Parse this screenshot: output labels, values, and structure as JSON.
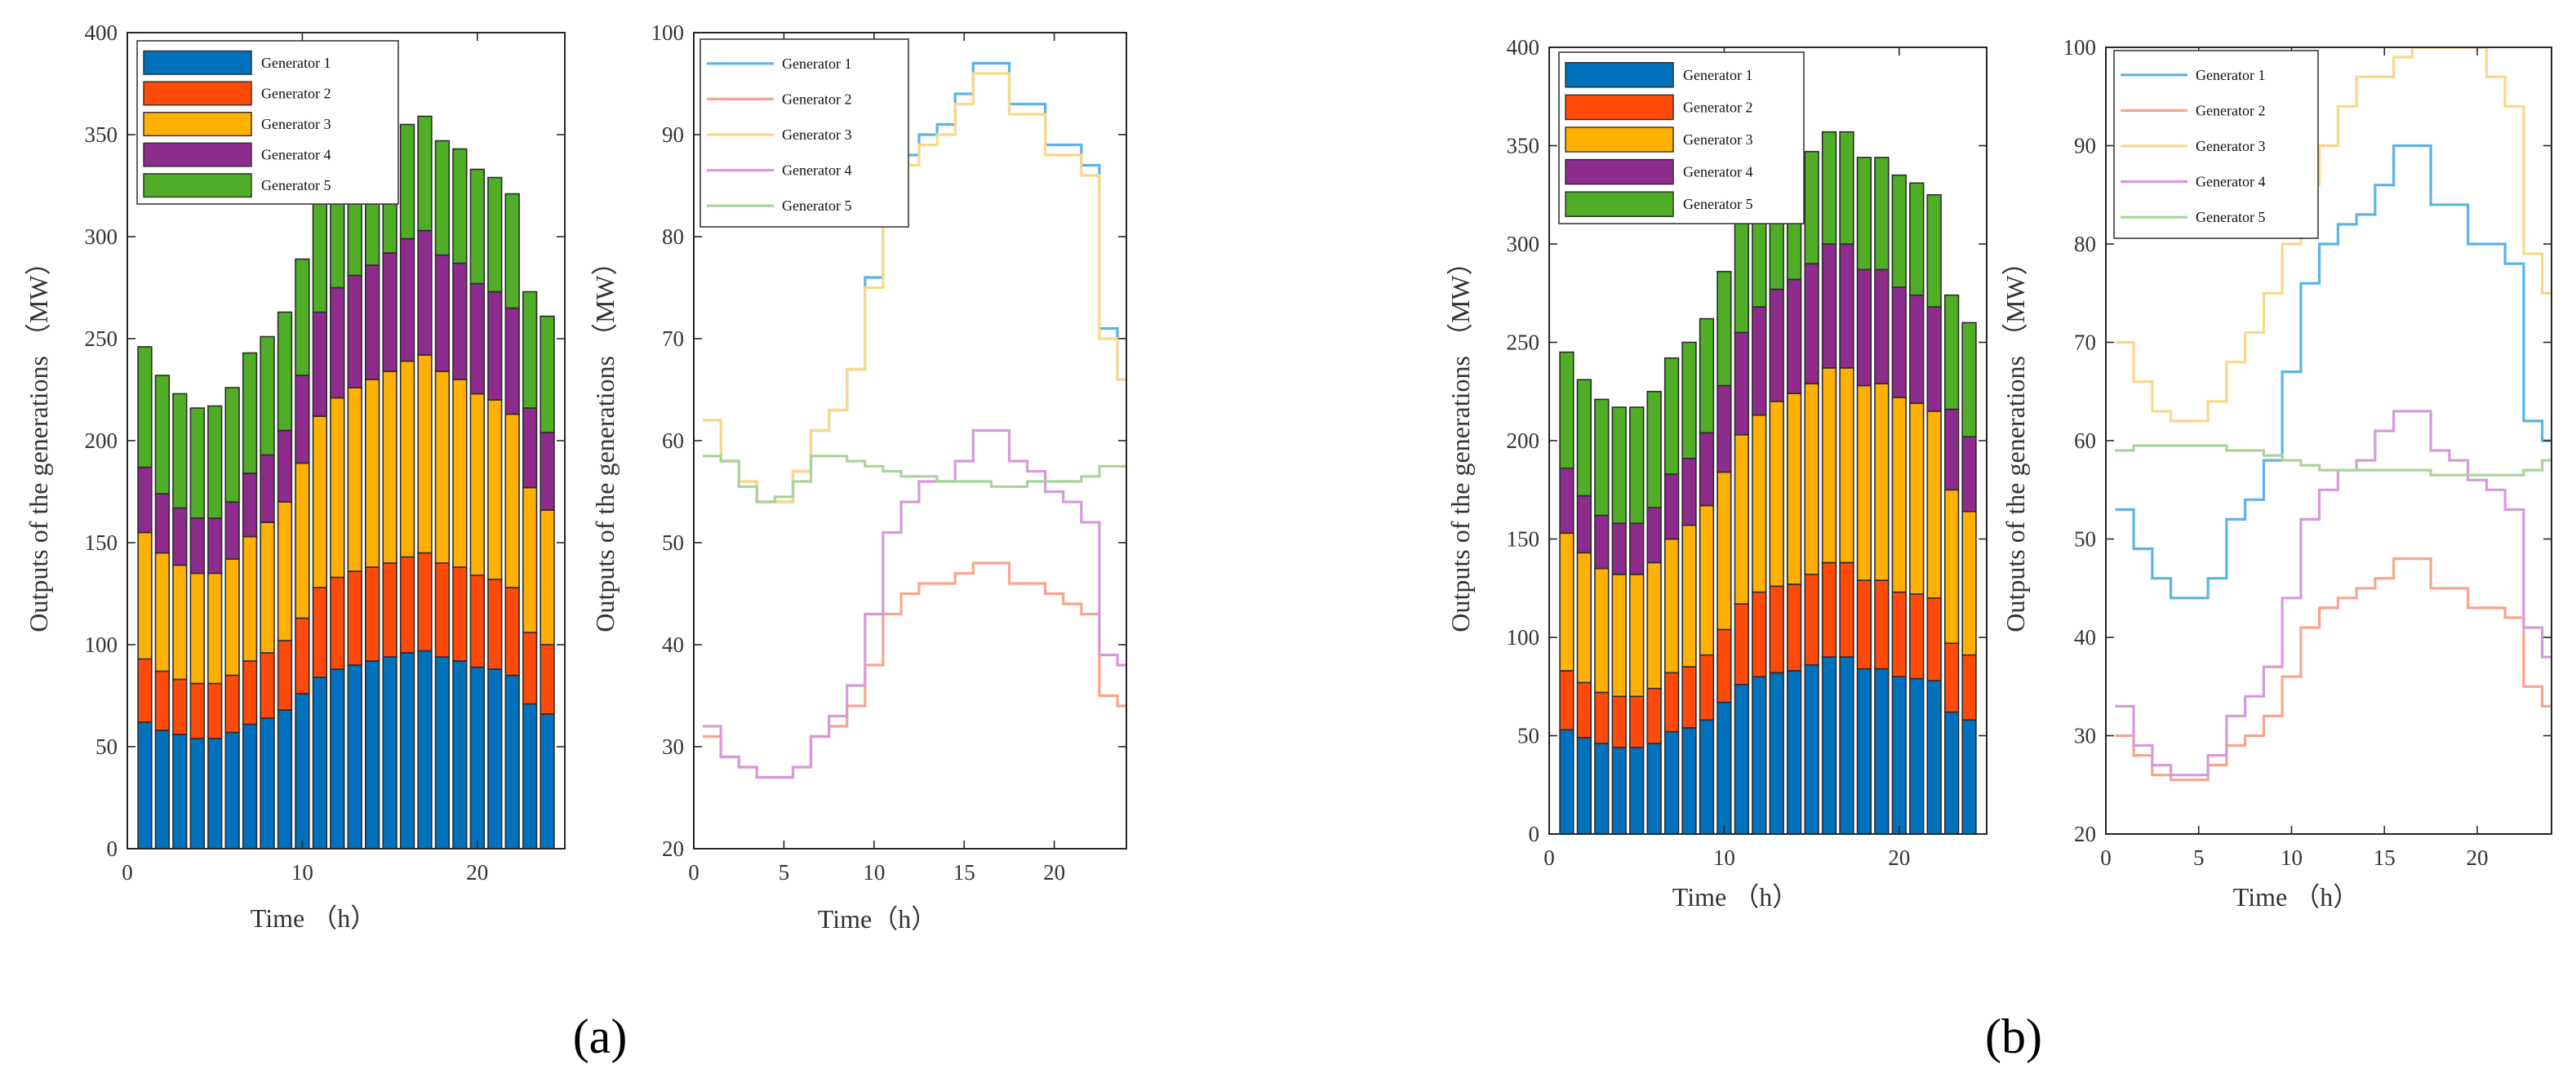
{
  "panel_labels": [
    "(a)",
    "(b)"
  ],
  "chart_data": [
    {
      "id": "a-stacked",
      "type": "bar",
      "stacked": true,
      "xlabel": "Time （h）",
      "ylabel": "Outputs of the generations （MW）",
      "xlim": [
        0,
        25
      ],
      "ylim": [
        0,
        400
      ],
      "xticks": [
        0,
        10,
        20
      ],
      "yticks": [
        0,
        50,
        100,
        150,
        200,
        250,
        300,
        350,
        400
      ],
      "legend_position": "top-left",
      "x": [
        1,
        2,
        3,
        4,
        5,
        6,
        7,
        8,
        9,
        10,
        11,
        12,
        13,
        14,
        15,
        16,
        17,
        18,
        19,
        20,
        21,
        22,
        23,
        24
      ],
      "series": [
        {
          "name": "Generator 1",
          "color": "#0072BD",
          "values": [
            62,
            58,
            56,
            54,
            54,
            57,
            61,
            64,
            68,
            76,
            84,
            88,
            90,
            92,
            94,
            96,
            97,
            94,
            92,
            89,
            88,
            85,
            71,
            66
          ]
        },
        {
          "name": "Generator 2",
          "color": "#FF4A0A",
          "values": [
            31,
            29,
            27,
            27,
            27,
            28,
            31,
            32,
            34,
            37,
            44,
            45,
            46,
            46,
            46,
            47,
            48,
            46,
            46,
            45,
            44,
            43,
            35,
            34
          ]
        },
        {
          "name": "Generator 3",
          "color": "#FFB000",
          "values": [
            62,
            58,
            56,
            54,
            54,
            57,
            61,
            64,
            68,
            76,
            84,
            88,
            90,
            92,
            94,
            96,
            97,
            94,
            92,
            89,
            88,
            85,
            71,
            66
          ]
        },
        {
          "name": "Generator 4",
          "color": "#8E2C8E",
          "values": [
            32,
            29,
            28,
            27,
            27,
            28,
            31,
            33,
            35,
            43,
            51,
            54,
            55,
            56,
            58,
            60,
            61,
            57,
            57,
            54,
            53,
            52,
            39,
            38
          ]
        },
        {
          "name": "Generator 5",
          "color": "#4FAE26",
          "values": [
            59,
            58,
            56,
            54,
            55,
            56,
            59,
            58,
            58,
            57,
            57,
            56,
            56,
            56,
            56,
            56,
            56,
            56,
            56,
            56,
            56,
            56,
            57,
            57
          ]
        }
      ]
    },
    {
      "id": "a-lines",
      "type": "line",
      "step": true,
      "xlabel": "Time（h）",
      "ylabel": "Outputs of the generations （MW）",
      "xlim": [
        0,
        24
      ],
      "ylim": [
        20,
        100
      ],
      "xticks": [
        0,
        5,
        10,
        15,
        20
      ],
      "yticks": [
        20,
        30,
        40,
        50,
        60,
        70,
        80,
        90,
        100
      ],
      "legend_position": "top-left",
      "x": [
        1,
        2,
        3,
        4,
        5,
        6,
        7,
        8,
        9,
        10,
        11,
        12,
        13,
        14,
        15,
        16,
        17,
        18,
        19,
        20,
        21,
        22,
        23,
        24
      ],
      "series": [
        {
          "name": "Generator 1",
          "color": "#5AB4E5",
          "values": [
            62,
            58,
            56,
            54,
            54,
            57,
            61,
            63,
            67,
            76,
            84,
            88,
            90,
            91,
            94,
            97,
            97,
            93,
            93,
            89,
            89,
            87,
            71,
            66
          ]
        },
        {
          "name": "Generator 2",
          "color": "#F7A58C",
          "values": [
            31,
            29,
            28,
            27,
            27,
            28,
            31,
            32,
            34,
            38,
            43,
            45,
            46,
            46,
            47,
            48,
            48,
            46,
            46,
            45,
            44,
            43,
            35,
            34
          ]
        },
        {
          "name": "Generator 3",
          "color": "#F9D88A",
          "values": [
            62,
            58,
            56,
            54,
            54,
            57,
            61,
            63,
            67,
            75,
            83,
            87,
            89,
            90,
            93,
            96,
            96,
            92,
            92,
            88,
            88,
            86,
            70,
            66
          ]
        },
        {
          "name": "Generator 4",
          "color": "#D69ADB",
          "values": [
            32,
            29,
            28,
            27,
            27,
            28,
            31,
            33,
            36,
            43,
            51,
            54,
            56,
            56,
            58,
            61,
            61,
            58,
            57,
            55,
            54,
            52,
            39,
            38
          ]
        },
        {
          "name": "Generator 5",
          "color": "#A9D49A",
          "values": [
            58.5,
            58,
            55.5,
            54,
            54.5,
            56,
            58.5,
            58.5,
            58,
            57.5,
            57,
            56.5,
            56.5,
            56,
            56,
            56,
            55.5,
            55.5,
            56,
            56,
            56,
            56.5,
            57.5,
            57.5
          ]
        }
      ]
    },
    {
      "id": "b-stacked",
      "type": "bar",
      "stacked": true,
      "xlabel": "Time （h）",
      "ylabel": "Outputs of the generations （MW）",
      "xlim": [
        0,
        25
      ],
      "ylim": [
        0,
        400
      ],
      "xticks": [
        0,
        10,
        20
      ],
      "yticks": [
        0,
        50,
        100,
        150,
        200,
        250,
        300,
        350,
        400
      ],
      "legend_position": "top-left",
      "x": [
        1,
        2,
        3,
        4,
        5,
        6,
        7,
        8,
        9,
        10,
        11,
        12,
        13,
        14,
        15,
        16,
        17,
        18,
        19,
        20,
        21,
        22,
        23,
        24
      ],
      "series": [
        {
          "name": "Generator 1",
          "color": "#0072BD",
          "values": [
            53,
            49,
            46,
            44,
            44,
            46,
            52,
            54,
            58,
            67,
            76,
            80,
            82,
            83,
            86,
            90,
            90,
            84,
            84,
            80,
            79,
            78,
            62,
            58
          ]
        },
        {
          "name": "Generator 2",
          "color": "#FF4A0A",
          "values": [
            30,
            28,
            26,
            26,
            26,
            28,
            30,
            31,
            33,
            37,
            41,
            43,
            44,
            44,
            46,
            48,
            48,
            45,
            45,
            43,
            43,
            42,
            35,
            33
          ]
        },
        {
          "name": "Generator 3",
          "color": "#FFB000",
          "values": [
            70,
            66,
            63,
            62,
            62,
            64,
            68,
            72,
            76,
            80,
            86,
            90,
            94,
            97,
            97,
            99,
            99,
            99,
            100,
            99,
            97,
            95,
            78,
            73
          ]
        },
        {
          "name": "Generator 4",
          "color": "#8E2C8E",
          "values": [
            33,
            29,
            27,
            26,
            26,
            28,
            33,
            34,
            37,
            44,
            52,
            55,
            57,
            58,
            61,
            63,
            63,
            59,
            58,
            56,
            55,
            53,
            41,
            38
          ]
        },
        {
          "name": "Generator 5",
          "color": "#4FAE26",
          "values": [
            59,
            59,
            59,
            59,
            59,
            59,
            59,
            59,
            58,
            58,
            57,
            57,
            57,
            57,
            57,
            57,
            57,
            57,
            57,
            57,
            57,
            57,
            58,
            58
          ]
        }
      ]
    },
    {
      "id": "b-lines",
      "type": "line",
      "step": true,
      "xlabel": "Time （h）",
      "ylabel": "Outputs of the generations （MW）",
      "xlim": [
        0,
        24
      ],
      "ylim": [
        20,
        100
      ],
      "xticks": [
        0,
        5,
        10,
        15,
        20
      ],
      "yticks": [
        20,
        30,
        40,
        50,
        60,
        70,
        80,
        90,
        100
      ],
      "legend_position": "top-left",
      "x": [
        1,
        2,
        3,
        4,
        5,
        6,
        7,
        8,
        9,
        10,
        11,
        12,
        13,
        14,
        15,
        16,
        17,
        18,
        19,
        20,
        21,
        22,
        23,
        24
      ],
      "series": [
        {
          "name": "Generator 1",
          "color": "#5AB4E5",
          "values": [
            53,
            49,
            46,
            44,
            44,
            46,
            52,
            54,
            58,
            67,
            76,
            80,
            82,
            83,
            86,
            90,
            90,
            84,
            84,
            80,
            80,
            78,
            62,
            60
          ]
        },
        {
          "name": "Generator 2",
          "color": "#F7A58C",
          "values": [
            30,
            28,
            26,
            25.5,
            25.5,
            27,
            29,
            30,
            32,
            36,
            41,
            43,
            44,
            45,
            46,
            48,
            48,
            45,
            45,
            43,
            43,
            42,
            35,
            33
          ]
        },
        {
          "name": "Generator 3",
          "color": "#F9D88A",
          "values": [
            70,
            66,
            63,
            62,
            62,
            64,
            68,
            71,
            75,
            80,
            86,
            90,
            94,
            97,
            97,
            99,
            100,
            100,
            100,
            100,
            97,
            94,
            79,
            75
          ]
        },
        {
          "name": "Generator 4",
          "color": "#D69ADB",
          "values": [
            33,
            29,
            27,
            26,
            26,
            28,
            32,
            34,
            37,
            44,
            52,
            55,
            57,
            58,
            61,
            63,
            63,
            59,
            58,
            56,
            55,
            53,
            41,
            38
          ]
        },
        {
          "name": "Generator 5",
          "color": "#A9D49A",
          "values": [
            59,
            59.5,
            59.5,
            59.5,
            59.5,
            59.5,
            59,
            59,
            58.5,
            58,
            57.5,
            57,
            57,
            57,
            57,
            57,
            57,
            56.5,
            56.5,
            56.5,
            56.5,
            56.5,
            57,
            58
          ]
        }
      ]
    }
  ]
}
